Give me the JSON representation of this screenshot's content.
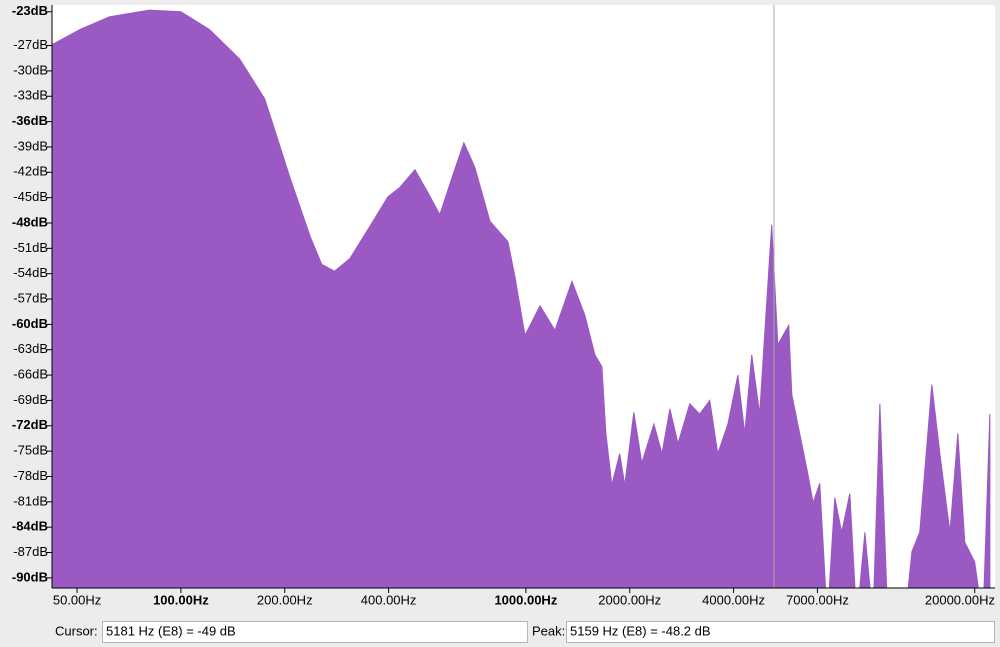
{
  "chart_data": {
    "type": "area",
    "color": "#9b59c3",
    "xscale": "log",
    "x": [
      42.3,
      51,
      62,
      81,
      100,
      121,
      148,
      175,
      207,
      237,
      256,
      279,
      309,
      353,
      398,
      431,
      477,
      520,
      563,
      611,
      661,
      711,
      787,
      887,
      929,
      994,
      1099,
      1214,
      1360,
      1482,
      1585,
      1661,
      1706,
      1775,
      1871,
      1935,
      2055,
      2168,
      2350,
      2480,
      2615,
      2760,
      2985,
      3190,
      3412,
      3600,
      3850,
      4116,
      4310,
      4515,
      4760,
      4963,
      5159,
      5375,
      5780,
      5900,
      6140,
      6560,
      6800,
      7110,
      7480,
      7860,
      8230,
      8690,
      9100,
      9610,
      10140,
      10620,
      11200,
      12550,
      13150,
      13860,
      15020,
      15850,
      16950,
      17870,
      18720,
      19990,
      21130,
      22130
    ],
    "values": [
      -26.9,
      -25.1,
      -23.6,
      -22.8,
      -23,
      -25.1,
      -28.6,
      -33.3,
      -42.6,
      -49.6,
      -52.9,
      -53.7,
      -52.2,
      -48.4,
      -44.9,
      -43.8,
      -41.7,
      -44.4,
      -47,
      -42.6,
      -38.5,
      -41.4,
      -47.8,
      -50.2,
      -54.3,
      -61.3,
      -57.8,
      -60.7,
      -54.9,
      -58.9,
      -63.6,
      -65,
      -72.9,
      -79,
      -75.3,
      -79,
      -70.4,
      -76.4,
      -71.8,
      -75.3,
      -70,
      -74.1,
      -69.4,
      -70.6,
      -69,
      -75.3,
      -71.8,
      -66,
      -72.9,
      -63.6,
      -70.6,
      -58.9,
      -48.2,
      -62.4,
      -60.1,
      -68.3,
      -71.8,
      -77.6,
      -81.1,
      -78.8,
      -95,
      -80.5,
      -84.6,
      -80,
      -95,
      -84.6,
      -95,
      -69.4,
      -95,
      -95,
      -86.9,
      -84.6,
      -67.1,
      -75.3,
      -84.6,
      -72.9,
      -85.8,
      -88.1,
      -95,
      -70.6
    ],
    "xlim": [
      42.3,
      22900
    ],
    "ylim": [
      -91.2,
      -22.2
    ],
    "xticks": [
      {
        "value": 50,
        "label": "50.00Hz"
      },
      {
        "value": 100,
        "label": "100.00Hz"
      },
      {
        "value": 200,
        "label": "200.00Hz"
      },
      {
        "value": 400,
        "label": "400.00Hz"
      },
      {
        "value": 1000,
        "label": "1000.00Hz"
      },
      {
        "value": 2000,
        "label": "2000.00Hz"
      },
      {
        "value": 4000,
        "label": "4000.00Hz"
      },
      {
        "value": 7000,
        "label": "7000.00Hz"
      },
      {
        "value": 20000,
        "label": "20000.00Hz"
      }
    ],
    "yticks": [
      {
        "value": -23,
        "label": "-23dB"
      },
      {
        "value": -27,
        "label": "-27dB"
      },
      {
        "value": -30,
        "label": "-30dB"
      },
      {
        "value": -33,
        "label": "-33dB"
      },
      {
        "value": -36,
        "label": "-36dB"
      },
      {
        "value": -39,
        "label": "-39dB"
      },
      {
        "value": -42,
        "label": "-42dB"
      },
      {
        "value": -45,
        "label": "-45dB"
      },
      {
        "value": -48,
        "label": "-48dB"
      },
      {
        "value": -51,
        "label": "-51dB"
      },
      {
        "value": -54,
        "label": "-54dB"
      },
      {
        "value": -57,
        "label": "-57dB"
      },
      {
        "value": -60,
        "label": "-60dB"
      },
      {
        "value": -63,
        "label": "-63dB"
      },
      {
        "value": -66,
        "label": "-66dB"
      },
      {
        "value": -69,
        "label": "-69dB"
      },
      {
        "value": -72,
        "label": "-72dB"
      },
      {
        "value": -75,
        "label": "-75dB"
      },
      {
        "value": -78,
        "label": "-78dB"
      },
      {
        "value": -81,
        "label": "-81dB"
      },
      {
        "value": -84,
        "label": "-84dB"
      },
      {
        "value": -87,
        "label": "-87dB"
      },
      {
        "value": -90,
        "label": "-90dB"
      }
    ]
  },
  "status": {
    "cursor_label": "Cursor:",
    "cursor_value": "5181 Hz (E8) = -49 dB",
    "peak_label": "Peak:",
    "peak_value": "5159 Hz (E8) = -48.2 dB"
  }
}
